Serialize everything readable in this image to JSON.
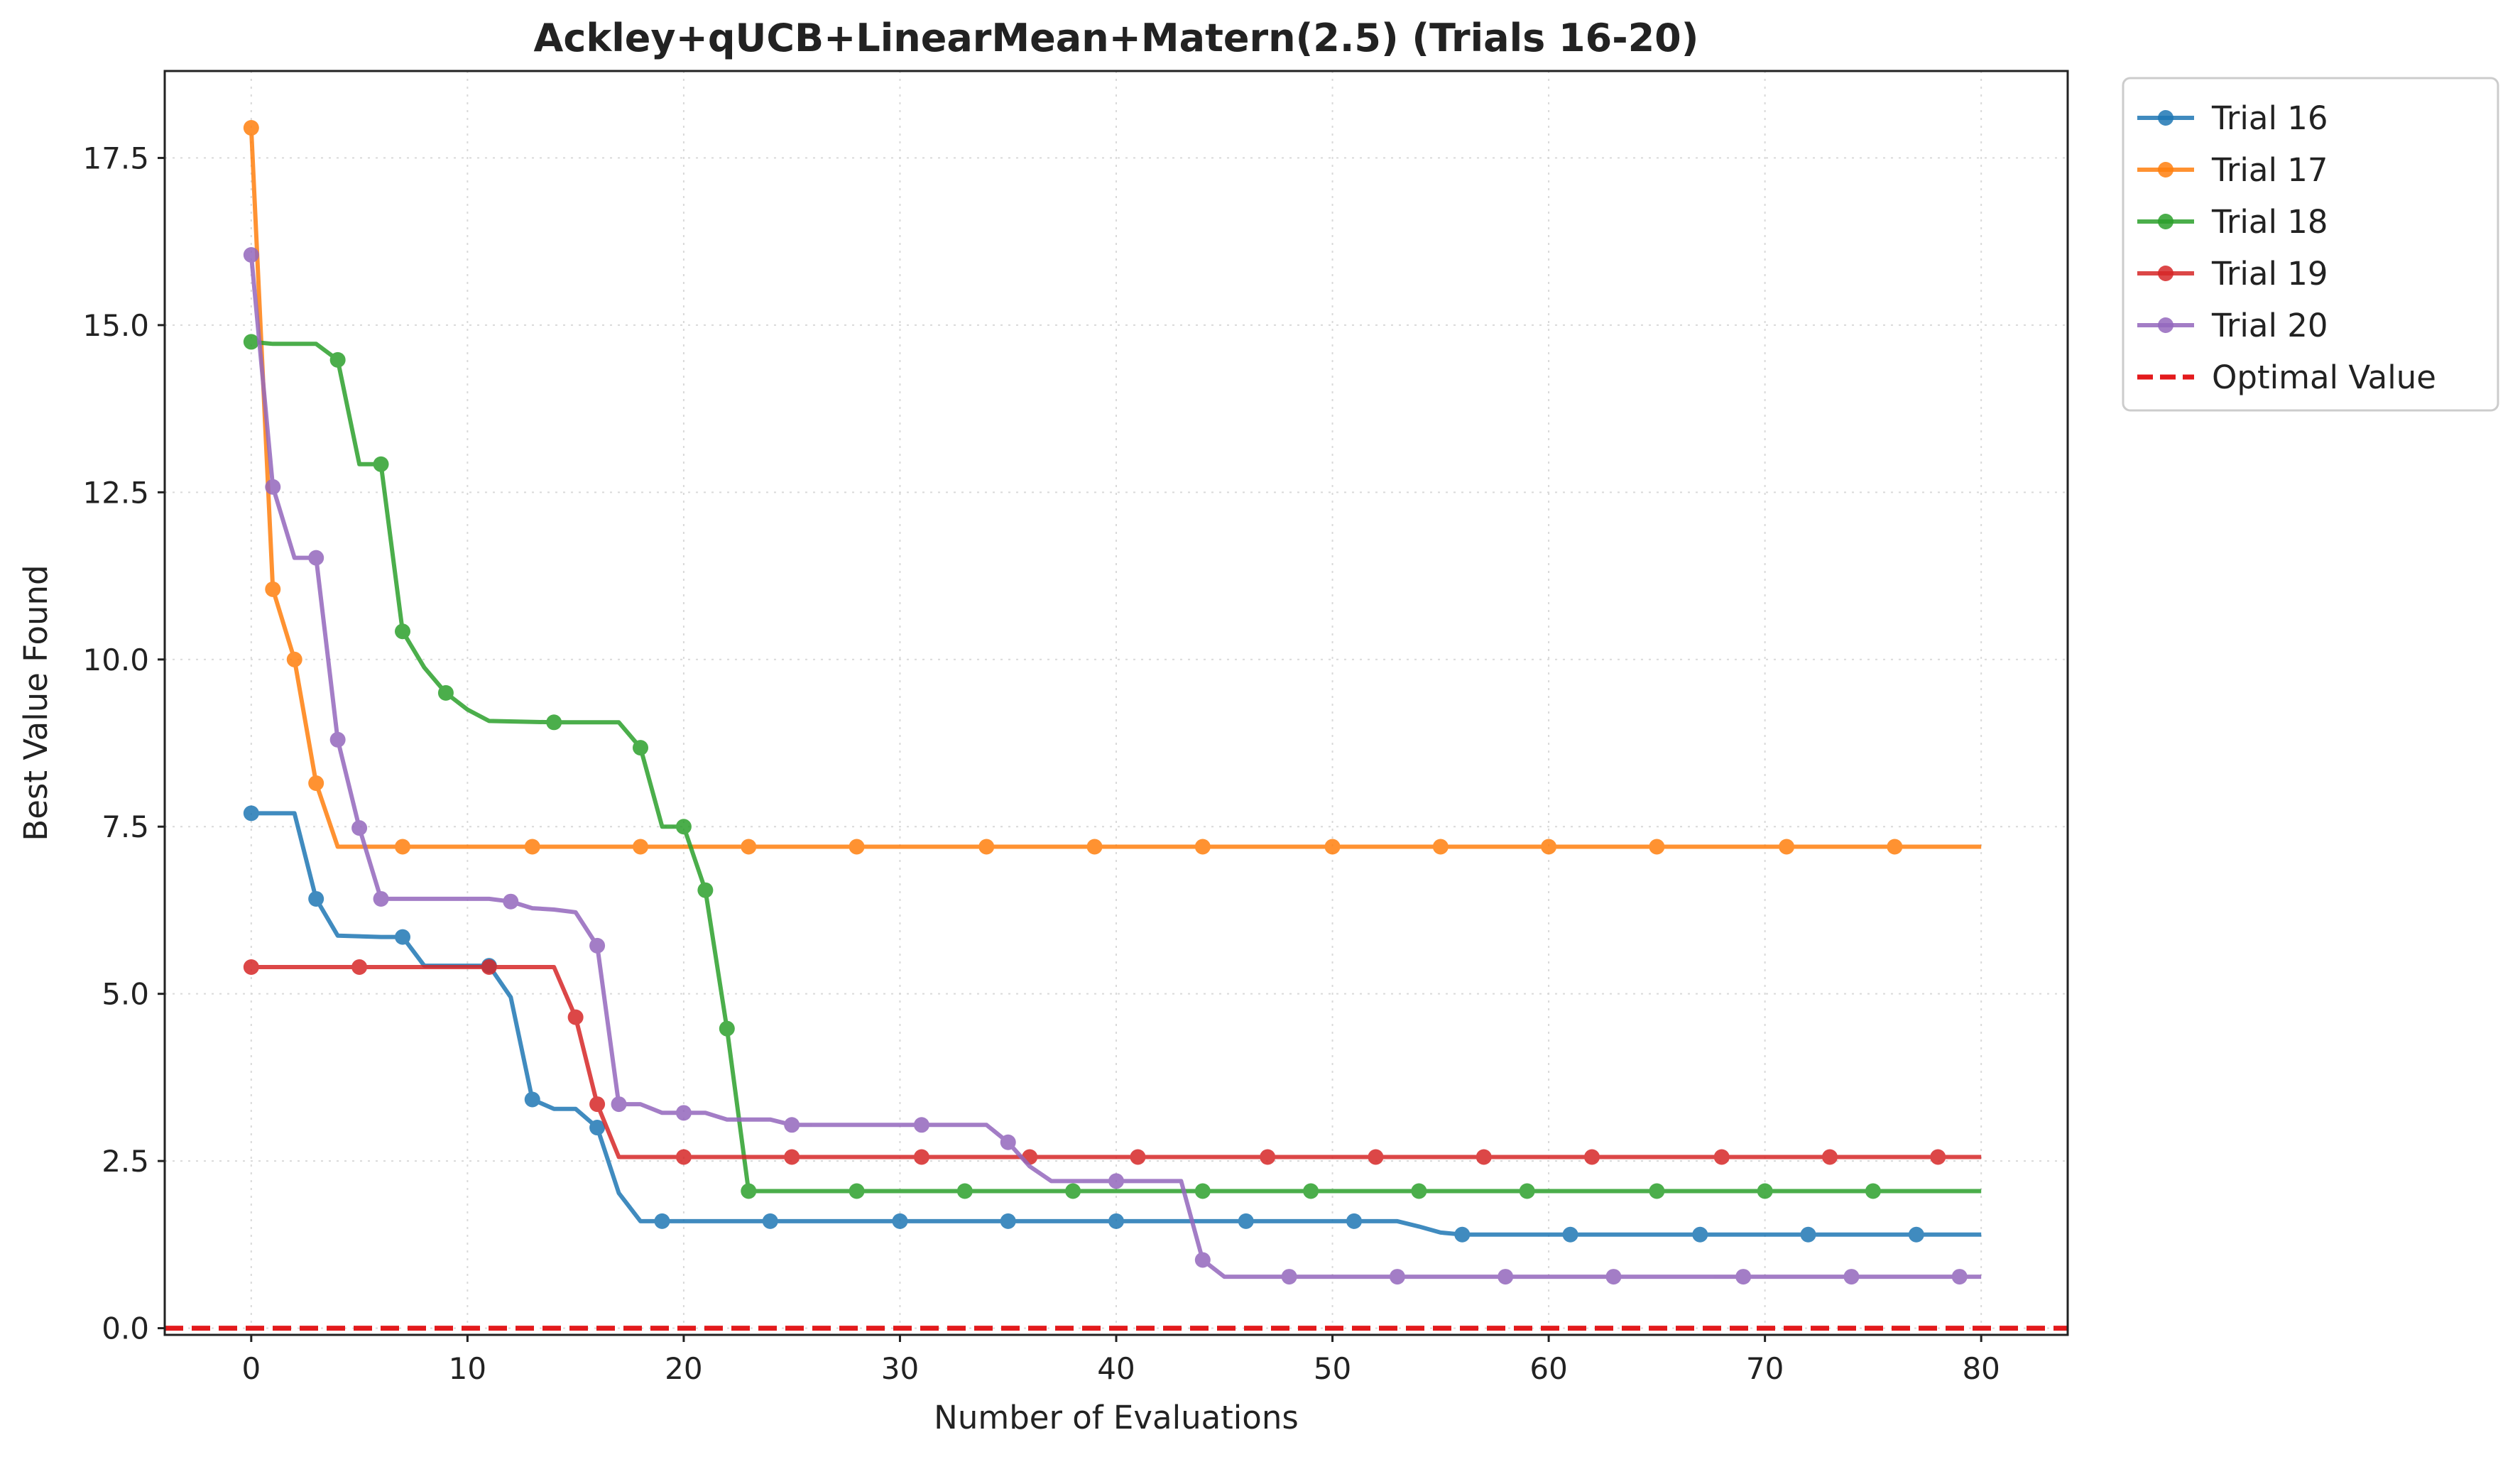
{
  "chart_data": {
    "type": "line",
    "title": "Ackley+qUCB+LinearMean+Matern(2.5) (Trials 16-20)",
    "xlabel": "Number of Evaluations",
    "ylabel": "Best Value Found",
    "xlim": [
      -4,
      84
    ],
    "ylim": [
      -0.1,
      18.8
    ],
    "xticks": [
      0,
      10,
      20,
      30,
      40,
      50,
      60,
      70,
      80
    ],
    "xtick_labels": [
      "0",
      "10",
      "20",
      "30",
      "40",
      "50",
      "60",
      "70",
      "80"
    ],
    "yticks": [
      0,
      2.5,
      5,
      7.5,
      10,
      12.5,
      15,
      17.5
    ],
    "ytick_labels": [
      "0.0",
      "2.5",
      "5.0",
      "7.5",
      "10.0",
      "12.5",
      "15.0",
      "17.5"
    ],
    "grid": true,
    "legend_position": "outside-top-right",
    "series": [
      {
        "name": "Trial 16",
        "color": "#1f77b4",
        "x": [
          0,
          2,
          3,
          4,
          6,
          7,
          8,
          11,
          12,
          13,
          14,
          15,
          16,
          17,
          18,
          19,
          24,
          30,
          35,
          40,
          46,
          51,
          53,
          54,
          55,
          56,
          61,
          67,
          72,
          77,
          80
        ],
        "y": [
          7.7,
          7.7,
          6.42,
          5.87,
          5.85,
          5.85,
          5.42,
          5.42,
          4.95,
          3.42,
          3.28,
          3.28,
          3.0,
          2.02,
          1.6,
          1.6,
          1.6,
          1.6,
          1.6,
          1.6,
          1.6,
          1.6,
          1.6,
          1.52,
          1.43,
          1.4,
          1.4,
          1.4,
          1.4,
          1.4,
          1.4
        ],
        "markers": [
          0,
          3,
          7,
          11,
          13,
          16,
          19,
          24,
          30,
          35,
          40,
          46,
          51,
          56,
          61,
          67,
          72,
          77
        ]
      },
      {
        "name": "Trial 17",
        "color": "#ff7f0e",
        "x": [
          0,
          1,
          2,
          3,
          4,
          7,
          13,
          18,
          23,
          28,
          34,
          39,
          44,
          50,
          55,
          60,
          65,
          71,
          76,
          80
        ],
        "y": [
          17.95,
          11.05,
          10.0,
          8.15,
          7.2,
          7.2,
          7.2,
          7.2,
          7.2,
          7.2,
          7.2,
          7.2,
          7.2,
          7.2,
          7.2,
          7.2,
          7.2,
          7.2,
          7.2,
          7.2
        ],
        "markers": [
          0,
          1,
          2,
          3,
          7,
          13,
          18,
          23,
          28,
          34,
          39,
          44,
          50,
          55,
          60,
          65,
          71,
          76
        ]
      },
      {
        "name": "Trial 18",
        "color": "#2ca02c",
        "x": [
          0,
          1,
          3,
          4,
          5,
          6,
          7,
          8,
          9,
          10,
          11,
          14,
          17,
          18,
          19,
          20,
          21,
          22,
          23,
          28,
          33,
          38,
          44,
          49,
          54,
          59,
          65,
          70,
          75,
          80
        ],
        "y": [
          14.75,
          14.72,
          14.72,
          14.48,
          12.92,
          12.92,
          10.42,
          9.88,
          9.5,
          9.25,
          9.08,
          9.06,
          9.06,
          8.68,
          7.5,
          7.5,
          6.55,
          4.48,
          2.05,
          2.05,
          2.05,
          2.05,
          2.05,
          2.05,
          2.05,
          2.05,
          2.05,
          2.05,
          2.05,
          2.05
        ],
        "markers": [
          0,
          4,
          6,
          7,
          9,
          14,
          18,
          20,
          21,
          22,
          23,
          28,
          33,
          38,
          44,
          49,
          54,
          59,
          65,
          70,
          75
        ]
      },
      {
        "name": "Trial 19",
        "color": "#d62728",
        "x": [
          0,
          5,
          11,
          14,
          15,
          16,
          17,
          20,
          25,
          31,
          36,
          41,
          47,
          52,
          57,
          62,
          68,
          73,
          78,
          80
        ],
        "y": [
          5.4,
          5.4,
          5.4,
          5.4,
          4.65,
          3.35,
          2.56,
          2.56,
          2.56,
          2.56,
          2.56,
          2.56,
          2.56,
          2.56,
          2.56,
          2.56,
          2.56,
          2.56,
          2.56,
          2.56
        ],
        "markers": [
          0,
          5,
          11,
          15,
          16,
          20,
          25,
          31,
          36,
          41,
          47,
          52,
          57,
          62,
          68,
          73,
          78
        ]
      },
      {
        "name": "Trial 20",
        "color": "#9467bd",
        "x": [
          0,
          1,
          2,
          3,
          4,
          5,
          6,
          11,
          12,
          13,
          14,
          15,
          16,
          17,
          18,
          19,
          20,
          21,
          22,
          24,
          25,
          31,
          34,
          35,
          36,
          37,
          40,
          43,
          44,
          45,
          48,
          53,
          58,
          63,
          69,
          74,
          79,
          80
        ],
        "y": [
          16.05,
          12.58,
          11.52,
          11.52,
          8.8,
          7.48,
          6.42,
          6.42,
          6.38,
          6.28,
          6.26,
          6.22,
          5.72,
          3.35,
          3.35,
          3.22,
          3.22,
          3.22,
          3.12,
          3.12,
          3.04,
          3.04,
          3.04,
          2.78,
          2.42,
          2.2,
          2.2,
          2.2,
          1.02,
          0.77,
          0.77,
          0.77,
          0.77,
          0.77,
          0.77,
          0.77,
          0.77,
          0.77
        ],
        "markers": [
          0,
          1,
          3,
          4,
          5,
          6,
          12,
          16,
          17,
          20,
          25,
          31,
          35,
          40,
          44,
          48,
          53,
          58,
          63,
          69,
          74,
          79
        ]
      }
    ],
    "reference_lines": [
      {
        "name": "Optimal Value",
        "y": 0,
        "color": "#e31a1c",
        "style": "dashed"
      }
    ]
  }
}
